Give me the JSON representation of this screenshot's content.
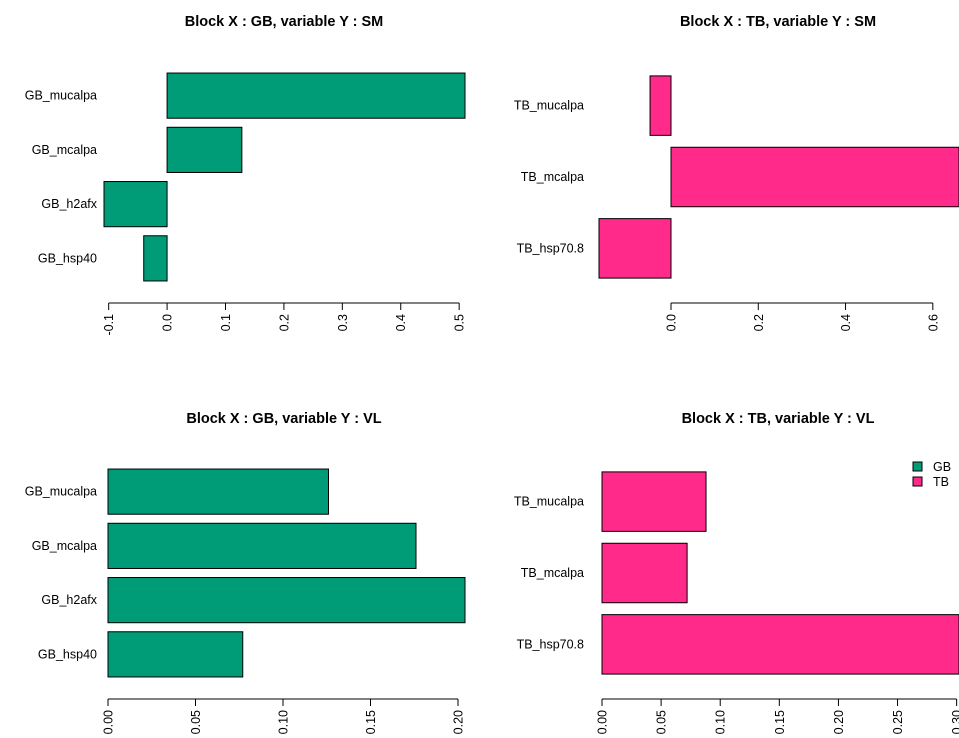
{
  "colors": {
    "GB": "#009B77",
    "TB": "#FF2A8A"
  },
  "legend": {
    "items": [
      "GB",
      "TB"
    ]
  },
  "chart_data": [
    {
      "type": "bar",
      "orientation": "horizontal",
      "title": "Block X : GB, variable Y : SM",
      "block": "GB",
      "categories": [
        "GB_mucalpa",
        "GB_mcalpa",
        "GB_h2afx",
        "GB_hsp40"
      ],
      "values": [
        0.51,
        0.128,
        -0.108,
        -0.04
      ],
      "ticks": [
        -0.1,
        0.0,
        0.1,
        0.2,
        0.3,
        0.4,
        0.5
      ],
      "tick_labels": [
        "-0.1",
        "0.0",
        "0.1",
        "0.2",
        "0.3",
        "0.4",
        "0.5"
      ],
      "xlim": [
        -0.108,
        0.51
      ]
    },
    {
      "type": "bar",
      "orientation": "horizontal",
      "title": "Block X : TB, variable Y : SM",
      "block": "TB",
      "categories": [
        "TB_mucalpa",
        "TB_mcalpa",
        "TB_hsp70.8"
      ],
      "values": [
        -0.048,
        0.66,
        -0.165
      ],
      "ticks": [
        0.0,
        0.2,
        0.4,
        0.6
      ],
      "tick_labels": [
        "0.0",
        "0.2",
        "0.4",
        "0.6"
      ],
      "xlim": [
        -0.165,
        0.66
      ]
    },
    {
      "type": "bar",
      "orientation": "horizontal",
      "title": "Block X : GB, variable Y : VL",
      "block": "GB",
      "categories": [
        "GB_mucalpa",
        "GB_mcalpa",
        "GB_h2afx",
        "GB_hsp40"
      ],
      "values": [
        0.126,
        0.176,
        0.204,
        0.077
      ],
      "ticks": [
        0.0,
        0.05,
        0.1,
        0.15,
        0.2
      ],
      "tick_labels": [
        "0.00",
        "0.05",
        "0.10",
        "0.15",
        "0.20"
      ],
      "xlim": [
        0,
        0.204
      ]
    },
    {
      "type": "bar",
      "orientation": "horizontal",
      "title": "Block X : TB, variable Y : VL",
      "block": "TB",
      "categories": [
        "TB_mucalpa",
        "TB_mcalpa",
        "TB_hsp70.8"
      ],
      "values": [
        0.088,
        0.072,
        0.302
      ],
      "ticks": [
        0.0,
        0.05,
        0.1,
        0.15,
        0.2,
        0.25,
        0.3
      ],
      "tick_labels": [
        "0.00",
        "0.05",
        "0.10",
        "0.15",
        "0.20",
        "0.25",
        "0.30"
      ],
      "xlim": [
        0,
        0.302
      ]
    }
  ]
}
